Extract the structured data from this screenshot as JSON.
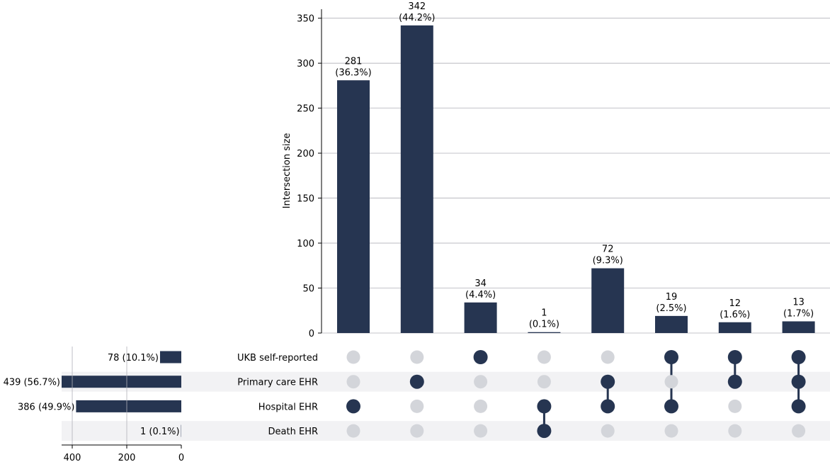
{
  "chart_data": {
    "type": "upset",
    "ylabel": "Intersection size",
    "ylim": [
      0,
      360
    ],
    "yticks": [
      0,
      50,
      100,
      150,
      200,
      250,
      300,
      350
    ],
    "grid": true,
    "colors": {
      "bar": "#263551",
      "dot_active": "#263551",
      "dot_inactive": "#d3d5da",
      "stripe": "#f2f2f4",
      "grid": "#b0b0b8",
      "axis": "#000000"
    },
    "sets": [
      "UKB self-reported",
      "Primary care EHR",
      "Hospital EHR",
      "Death EHR"
    ],
    "set_sizes": [
      78,
      439,
      386,
      1
    ],
    "set_size_labels": [
      "78 (10.1%)",
      "439 (56.7%)",
      "386 (49.9%)",
      "1 (0.1%)"
    ],
    "set_size_xlim": [
      0,
      439
    ],
    "set_size_xticks": [
      400,
      200,
      0
    ],
    "intersections": [
      {
        "members": [
          2
        ],
        "value": 281,
        "label_count": "281",
        "label_pct": "(36.3%)"
      },
      {
        "members": [
          1
        ],
        "value": 342,
        "label_count": "342",
        "label_pct": "(44.2%)"
      },
      {
        "members": [
          0
        ],
        "value": 34,
        "label_count": "34",
        "label_pct": "(4.4%)"
      },
      {
        "members": [
          2,
          3
        ],
        "value": 1,
        "label_count": "1",
        "label_pct": "(0.1%)"
      },
      {
        "members": [
          1,
          2
        ],
        "value": 72,
        "label_count": "72",
        "label_pct": "(9.3%)"
      },
      {
        "members": [
          0,
          2
        ],
        "value": 19,
        "label_count": "19",
        "label_pct": "(2.5%)"
      },
      {
        "members": [
          0,
          1
        ],
        "value": 12,
        "label_count": "12",
        "label_pct": "(1.6%)"
      },
      {
        "members": [
          0,
          1,
          2
        ],
        "value": 13,
        "label_count": "13",
        "label_pct": "(1.7%)"
      }
    ]
  }
}
